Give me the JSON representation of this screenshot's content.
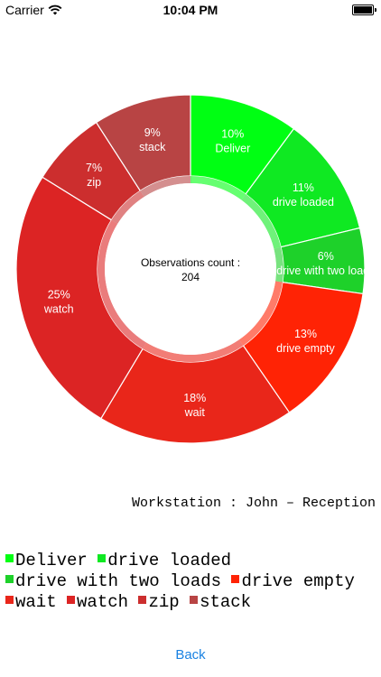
{
  "status_bar": {
    "carrier": "Carrier",
    "time": "10:04 PM",
    "wifi_icon": "wifi-icon",
    "battery_icon": "battery-icon"
  },
  "center": {
    "label": "Observations count :",
    "value": "204"
  },
  "chart_data": {
    "type": "pie",
    "style": "donut",
    "categories": [
      "Deliver",
      "drive loaded",
      "drive with two loads",
      "drive empty",
      "wait",
      "watch",
      "zip",
      "stack"
    ],
    "values": [
      10,
      11,
      6,
      13,
      18,
      25,
      7,
      9
    ],
    "labels": [
      "10%",
      "11%",
      "6%",
      "13%",
      "18%",
      "25%",
      "7%",
      "9%"
    ],
    "colors": [
      "#00ff13",
      "#0fe922",
      "#1ed12a",
      "#ff2305",
      "#e9261a",
      "#dc2424",
      "#cc2e2e",
      "#b84444"
    ],
    "inner_ring_color": "#ffffff"
  },
  "workstation": "Workstation : John – Reception",
  "legend": {
    "items": [
      {
        "label": "Deliver",
        "color": "#00ff13"
      },
      {
        "label": "drive loaded",
        "color": "#0fe922"
      },
      {
        "label": "drive with two loads",
        "color": "#1ed12a"
      },
      {
        "label": "drive empty",
        "color": "#ff2305"
      },
      {
        "label": "wait",
        "color": "#e9261a"
      },
      {
        "label": "watch",
        "color": "#dc2424"
      },
      {
        "label": "zip",
        "color": "#cc2e2e"
      },
      {
        "label": "stack",
        "color": "#b84444"
      }
    ]
  },
  "back_label": "Back"
}
